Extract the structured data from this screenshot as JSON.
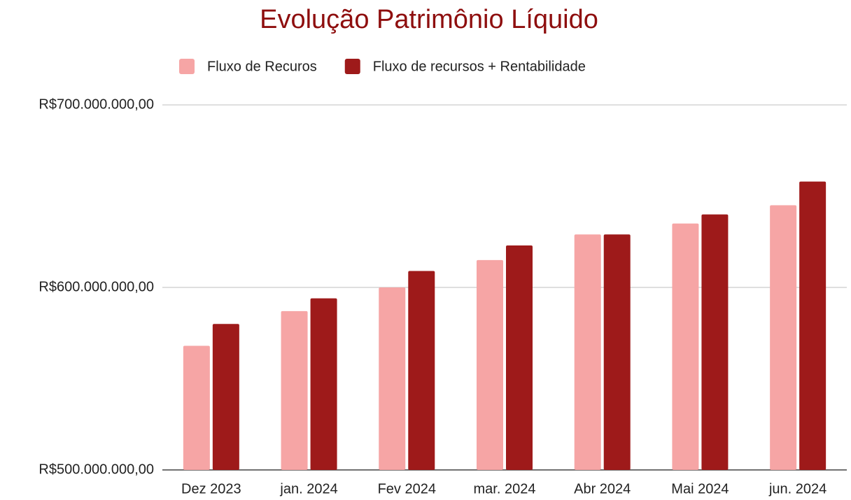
{
  "chart_data": {
    "type": "bar",
    "title": "Evolução Patrimônio Líquido",
    "categories": [
      "Dez 2023",
      "jan. 2024",
      "Fev 2024",
      "mar. 2024",
      "Abr 2024",
      "Mai 2024",
      "jun. 2024"
    ],
    "series": [
      {
        "name": "Fluxo de Recuros",
        "color": "#f6a5a5",
        "values": [
          568000000,
          587000000,
          600000000,
          615000000,
          629000000,
          635000000,
          645000000
        ]
      },
      {
        "name": "Fluxo de recursos + Rentabilidade",
        "color": "#9e1a1a",
        "values": [
          580000000,
          594000000,
          609000000,
          623000000,
          629000000,
          640000000,
          658000000
        ]
      }
    ],
    "ylim": [
      500000000,
      700000000
    ],
    "yticks": [
      {
        "value": 500000000,
        "label": "R$500.000.000,00"
      },
      {
        "value": 600000000,
        "label": "R$600.000.000,00"
      },
      {
        "value": 700000000,
        "label": "R$700.000.000,00"
      }
    ],
    "grid": true,
    "legend": "top"
  }
}
